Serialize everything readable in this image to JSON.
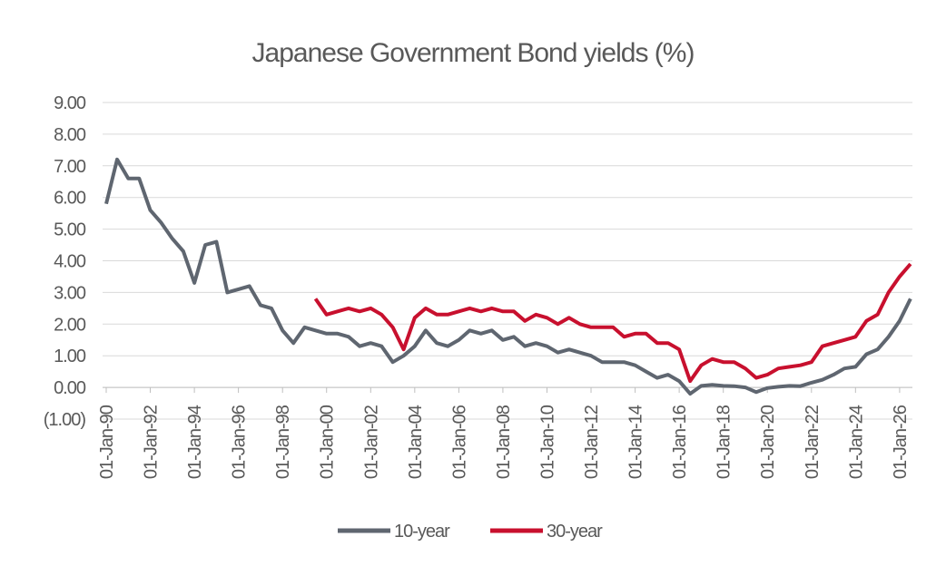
{
  "chart_data": {
    "type": "line",
    "title": "Japanese Government Bond yields (%)",
    "x": [
      "1990-01-01",
      "1990-07-01",
      "1991-01-01",
      "1991-07-01",
      "1992-01-01",
      "1992-07-01",
      "1993-01-01",
      "1993-07-01",
      "1994-01-01",
      "1994-07-01",
      "1995-01-01",
      "1995-07-01",
      "1996-01-01",
      "1996-07-01",
      "1997-01-01",
      "1997-07-01",
      "1998-01-01",
      "1998-07-01",
      "1999-01-01",
      "1999-07-01",
      "2000-01-01",
      "2000-07-01",
      "2001-01-01",
      "2001-07-01",
      "2002-01-01",
      "2002-07-01",
      "2003-01-01",
      "2003-07-01",
      "2004-01-01",
      "2004-07-01",
      "2005-01-01",
      "2005-07-01",
      "2006-01-01",
      "2006-07-01",
      "2007-01-01",
      "2007-07-01",
      "2008-01-01",
      "2008-07-01",
      "2009-01-01",
      "2009-07-01",
      "2010-01-01",
      "2010-07-01",
      "2011-01-01",
      "2011-07-01",
      "2012-01-01",
      "2012-07-01",
      "2013-01-01",
      "2013-07-01",
      "2014-01-01",
      "2014-07-01",
      "2015-01-01",
      "2015-07-01",
      "2016-01-01",
      "2016-07-01",
      "2017-01-01",
      "2017-07-01",
      "2018-01-01",
      "2018-07-01",
      "2019-01-01",
      "2019-07-01",
      "2020-01-01",
      "2020-07-01",
      "2021-01-01",
      "2021-07-01",
      "2022-01-01",
      "2022-07-01",
      "2023-01-01",
      "2023-07-01",
      "2024-01-01",
      "2024-07-01",
      "2025-01-01",
      "2025-07-01",
      "2026-01-01",
      "2026-07-01"
    ],
    "series": [
      {
        "name": "10-year",
        "color": "#5f6670",
        "values": [
          5.8,
          7.2,
          6.6,
          6.6,
          5.6,
          5.2,
          4.7,
          4.3,
          3.3,
          4.5,
          4.6,
          3.0,
          3.1,
          3.2,
          2.6,
          2.5,
          1.8,
          1.4,
          1.9,
          1.8,
          1.7,
          1.7,
          1.6,
          1.3,
          1.4,
          1.3,
          0.8,
          1.0,
          1.3,
          1.8,
          1.4,
          1.3,
          1.5,
          1.8,
          1.7,
          1.8,
          1.5,
          1.6,
          1.3,
          1.4,
          1.3,
          1.1,
          1.2,
          1.1,
          1.0,
          0.8,
          0.8,
          0.8,
          0.7,
          0.5,
          0.3,
          0.4,
          0.2,
          -0.2,
          0.05,
          0.08,
          0.05,
          0.04,
          0.0,
          -0.15,
          -0.02,
          0.02,
          0.05,
          0.04,
          0.15,
          0.24,
          0.4,
          0.6,
          0.65,
          1.05,
          1.2,
          1.6,
          2.1,
          2.8
        ]
      },
      {
        "name": "30-year",
        "color": "#c8102e",
        "values": [
          null,
          null,
          null,
          null,
          null,
          null,
          null,
          null,
          null,
          null,
          null,
          null,
          null,
          null,
          null,
          null,
          null,
          null,
          null,
          2.8,
          2.3,
          2.4,
          2.5,
          2.4,
          2.5,
          2.3,
          1.9,
          1.2,
          2.2,
          2.5,
          2.3,
          2.3,
          2.4,
          2.5,
          2.4,
          2.5,
          2.4,
          2.4,
          2.1,
          2.3,
          2.2,
          2.0,
          2.2,
          2.0,
          1.9,
          1.9,
          1.9,
          1.6,
          1.7,
          1.7,
          1.4,
          1.4,
          1.2,
          0.2,
          0.7,
          0.9,
          0.8,
          0.8,
          0.6,
          0.3,
          0.4,
          0.6,
          0.65,
          0.7,
          0.8,
          1.3,
          1.4,
          1.5,
          1.6,
          2.1,
          2.3,
          3.0,
          3.5,
          3.9
        ]
      }
    ],
    "xlim": [
      "1990-01-01",
      "2026-08-01"
    ],
    "xticks": [
      {
        "value": "1990-01-01",
        "label": "01-Jan-90"
      },
      {
        "value": "1992-01-01",
        "label": "01-Jan-92"
      },
      {
        "value": "1994-01-01",
        "label": "01-Jan-94"
      },
      {
        "value": "1996-01-01",
        "label": "01-Jan-96"
      },
      {
        "value": "1998-01-01",
        "label": "01-Jan-98"
      },
      {
        "value": "2000-01-01",
        "label": "01-Jan-00"
      },
      {
        "value": "2002-01-01",
        "label": "01-Jan-02"
      },
      {
        "value": "2004-01-01",
        "label": "01-Jan-04"
      },
      {
        "value": "2006-01-01",
        "label": "01-Jan-06"
      },
      {
        "value": "2008-01-01",
        "label": "01-Jan-08"
      },
      {
        "value": "2010-01-01",
        "label": "01-Jan-10"
      },
      {
        "value": "2012-01-01",
        "label": "01-Jan-12"
      },
      {
        "value": "2014-01-01",
        "label": "01-Jan-14"
      },
      {
        "value": "2016-01-01",
        "label": "01-Jan-16"
      },
      {
        "value": "2018-01-01",
        "label": "01-Jan-18"
      },
      {
        "value": "2020-01-01",
        "label": "01-Jan-20"
      },
      {
        "value": "2022-01-01",
        "label": "01-Jan-22"
      },
      {
        "value": "2024-01-01",
        "label": "01-Jan-24"
      },
      {
        "value": "2026-01-01",
        "label": "01-Jan-26"
      }
    ],
    "ylim": [
      -1,
      9
    ],
    "yticks": [
      {
        "value": -1,
        "label": "(1.00)"
      },
      {
        "value": 0,
        "label": "0.00"
      },
      {
        "value": 1,
        "label": "1.00"
      },
      {
        "value": 2,
        "label": "2.00"
      },
      {
        "value": 3,
        "label": "3.00"
      },
      {
        "value": 4,
        "label": "4.00"
      },
      {
        "value": 5,
        "label": "5.00"
      },
      {
        "value": 6,
        "label": "6.00"
      },
      {
        "value": 7,
        "label": "7.00"
      },
      {
        "value": 8,
        "label": "8.00"
      },
      {
        "value": 9,
        "label": "9.00"
      }
    ],
    "grid": true
  }
}
